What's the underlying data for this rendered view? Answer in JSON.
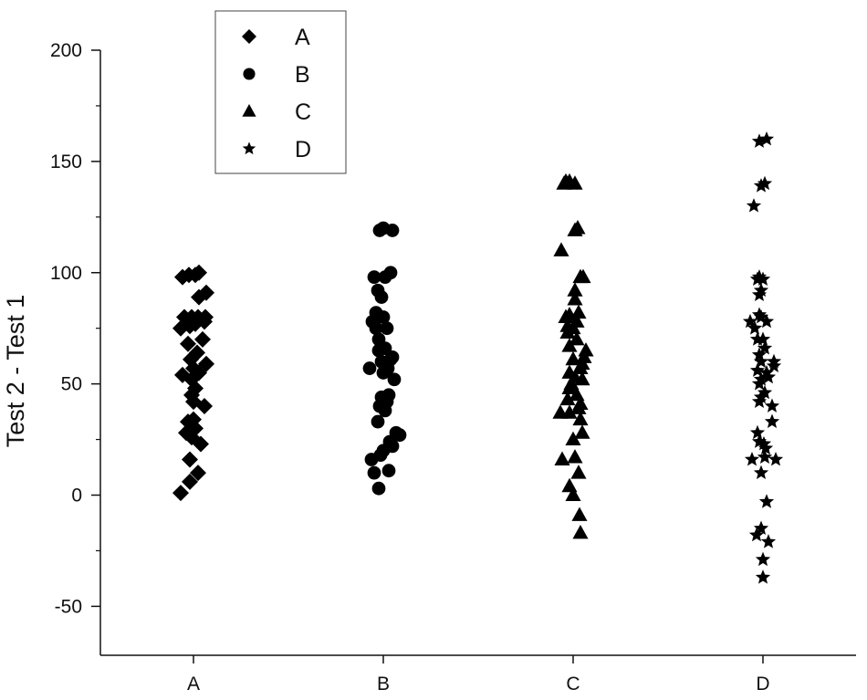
{
  "chart_data": {
    "type": "scatter",
    "title": "",
    "xlabel": "",
    "ylabel": "Test 2 - Test 1",
    "categories": [
      "A",
      "B",
      "C",
      "D"
    ],
    "ylim": [
      -72,
      200
    ],
    "yticks": [
      -50,
      0,
      50,
      100,
      150,
      200
    ],
    "grid": false,
    "legend": {
      "position": "top-left",
      "entries": [
        {
          "name": "A",
          "marker": "diamond"
        },
        {
          "name": "B",
          "marker": "circle"
        },
        {
          "name": "C",
          "marker": "triangle"
        },
        {
          "name": "D",
          "marker": "star"
        }
      ]
    },
    "series": [
      {
        "name": "A",
        "marker": "diamond",
        "color": "#000000",
        "points": [
          [
            -0.14,
            1
          ],
          [
            -0.04,
            6
          ],
          [
            0.05,
            10
          ],
          [
            -0.04,
            16
          ],
          [
            0.08,
            23
          ],
          [
            -0.02,
            26
          ],
          [
            -0.08,
            28
          ],
          [
            0.02,
            30
          ],
          [
            -0.06,
            33
          ],
          [
            0.0,
            34
          ],
          [
            0.12,
            40
          ],
          [
            0.0,
            42
          ],
          [
            -0.02,
            45
          ],
          [
            0.02,
            48
          ],
          [
            -0.02,
            52
          ],
          [
            0.06,
            55
          ],
          [
            -0.12,
            54
          ],
          [
            0.0,
            57
          ],
          [
            0.14,
            59
          ],
          [
            -0.03,
            61
          ],
          [
            0.04,
            64
          ],
          [
            -0.06,
            68
          ],
          [
            0.1,
            70
          ],
          [
            -0.14,
            75
          ],
          [
            -0.04,
            76
          ],
          [
            0.02,
            77
          ],
          [
            0.12,
            78
          ],
          [
            -0.1,
            80
          ],
          [
            -0.02,
            80
          ],
          [
            0.05,
            80
          ],
          [
            0.13,
            80
          ],
          [
            0.06,
            89
          ],
          [
            0.14,
            91
          ],
          [
            -0.12,
            98
          ],
          [
            -0.05,
            99
          ],
          [
            0.02,
            99
          ],
          [
            0.06,
            100
          ]
        ]
      },
      {
        "name": "B",
        "marker": "circle",
        "color": "#000000",
        "points": [
          [
            -0.05,
            3
          ],
          [
            -0.1,
            10
          ],
          [
            0.06,
            11
          ],
          [
            -0.13,
            16
          ],
          [
            0.1,
            22
          ],
          [
            -0.03,
            18
          ],
          [
            0.0,
            20
          ],
          [
            0.07,
            24
          ],
          [
            0.18,
            27
          ],
          [
            0.14,
            28
          ],
          [
            -0.06,
            33
          ],
          [
            0.02,
            38
          ],
          [
            -0.04,
            40
          ],
          [
            0.04,
            42
          ],
          [
            -0.02,
            44
          ],
          [
            0.06,
            45
          ],
          [
            0.12,
            52
          ],
          [
            -0.15,
            57
          ],
          [
            0.0,
            55
          ],
          [
            0.05,
            57
          ],
          [
            -0.02,
            60
          ],
          [
            0.08,
            61
          ],
          [
            0.1,
            62
          ],
          [
            -0.05,
            65
          ],
          [
            0.02,
            66
          ],
          [
            -0.05,
            70
          ],
          [
            -0.08,
            75
          ],
          [
            0.04,
            75
          ],
          [
            -0.12,
            78
          ],
          [
            0.0,
            80
          ],
          [
            -0.08,
            82
          ],
          [
            -0.02,
            89
          ],
          [
            -0.06,
            92
          ],
          [
            -0.1,
            98
          ],
          [
            0.02,
            98
          ],
          [
            0.08,
            100
          ],
          [
            -0.04,
            119
          ],
          [
            0.0,
            120
          ],
          [
            0.1,
            119
          ]
        ]
      },
      {
        "name": "C",
        "marker": "triangle",
        "color": "#000000",
        "points": [
          [
            0.08,
            -17
          ],
          [
            0.07,
            -9
          ],
          [
            0.0,
            0
          ],
          [
            -0.04,
            4
          ],
          [
            0.06,
            10
          ],
          [
            0.02,
            17
          ],
          [
            -0.12,
            16
          ],
          [
            0.0,
            25
          ],
          [
            0.1,
            28
          ],
          [
            0.08,
            34
          ],
          [
            -0.04,
            37
          ],
          [
            -0.14,
            37
          ],
          [
            0.06,
            39
          ],
          [
            0.08,
            41
          ],
          [
            -0.06,
            43
          ],
          [
            0.04,
            45
          ],
          [
            -0.04,
            48
          ],
          [
            -0.02,
            50
          ],
          [
            0.1,
            52
          ],
          [
            0.02,
            53
          ],
          [
            -0.04,
            55
          ],
          [
            0.08,
            57
          ],
          [
            0.1,
            59
          ],
          [
            0.0,
            61
          ],
          [
            0.12,
            62
          ],
          [
            0.14,
            65
          ],
          [
            -0.04,
            67
          ],
          [
            0.04,
            70
          ],
          [
            -0.06,
            73
          ],
          [
            0.0,
            75
          ],
          [
            -0.06,
            76
          ],
          [
            0.04,
            78
          ],
          [
            -0.08,
            80
          ],
          [
            -0.04,
            81
          ],
          [
            0.06,
            82
          ],
          [
            0.02,
            88
          ],
          [
            0.02,
            92
          ],
          [
            0.08,
            98
          ],
          [
            0.11,
            98
          ],
          [
            -0.13,
            110
          ],
          [
            0.02,
            119
          ],
          [
            0.05,
            120
          ],
          [
            -0.1,
            140
          ],
          [
            -0.08,
            141
          ],
          [
            -0.04,
            141
          ],
          [
            0.02,
            140
          ]
        ]
      },
      {
        "name": "D",
        "marker": "star",
        "color": "#000000",
        "points": [
          [
            0.0,
            -37
          ],
          [
            0.0,
            -29
          ],
          [
            0.06,
            -21
          ],
          [
            -0.07,
            -18
          ],
          [
            -0.02,
            -15
          ],
          [
            0.04,
            -3
          ],
          [
            -0.02,
            10
          ],
          [
            -0.12,
            16
          ],
          [
            0.02,
            17
          ],
          [
            0.14,
            16
          ],
          [
            0.03,
            21
          ],
          [
            -0.04,
            24
          ],
          [
            0.01,
            23
          ],
          [
            -0.06,
            28
          ],
          [
            0.1,
            33
          ],
          [
            0.1,
            40
          ],
          [
            -0.04,
            42
          ],
          [
            -0.02,
            44
          ],
          [
            0.02,
            46
          ],
          [
            -0.04,
            50
          ],
          [
            -0.02,
            52
          ],
          [
            0.04,
            55
          ],
          [
            0.06,
            53
          ],
          [
            -0.06,
            56
          ],
          [
            0.12,
            58
          ],
          [
            0.12,
            60
          ],
          [
            -0.02,
            60
          ],
          [
            -0.04,
            63
          ],
          [
            0.02,
            66
          ],
          [
            -0.06,
            70
          ],
          [
            0.0,
            70
          ],
          [
            -0.09,
            75
          ],
          [
            -0.14,
            78
          ],
          [
            0.04,
            78
          ],
          [
            -0.02,
            80
          ],
          [
            -0.04,
            81
          ],
          [
            -0.04,
            90
          ],
          [
            -0.02,
            92
          ],
          [
            -0.06,
            97
          ],
          [
            0.0,
            97
          ],
          [
            -0.04,
            98
          ],
          [
            -0.1,
            130
          ],
          [
            -0.02,
            139
          ],
          [
            0.02,
            140
          ],
          [
            -0.04,
            159
          ],
          [
            0.04,
            160
          ]
        ]
      }
    ]
  }
}
